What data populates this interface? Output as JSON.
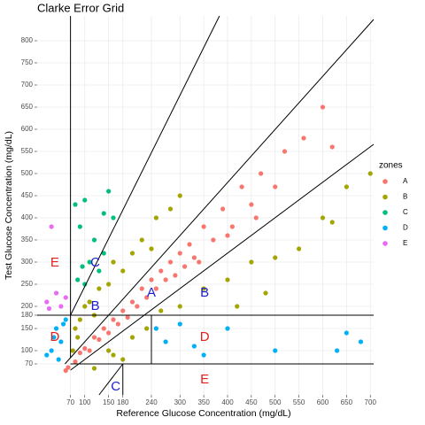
{
  "chart_data": {
    "type": "scatter",
    "title": "Clarke Error Grid",
    "x_label": "Reference Glucose Concentration (mg/dL)",
    "y_label": "Test Glucose Concentration (mg/dL)",
    "legend_title": "zones",
    "legend_position": "right",
    "grid": true,
    "xlim": [
      0,
      707
    ],
    "ylim": [
      0,
      856
    ],
    "xticks": [
      70,
      100,
      150,
      180,
      240,
      300,
      350,
      400,
      450,
      500,
      550,
      600,
      650,
      700
    ],
    "yticks": [
      70,
      100,
      150,
      180,
      200,
      250,
      300,
      350,
      400,
      450,
      500,
      550,
      600,
      650,
      700,
      750,
      800
    ],
    "series": [
      {
        "name": "A",
        "color": "#F8766D",
        "x": [
          60,
          65,
          80,
          90,
          100,
          110,
          120,
          130,
          140,
          150,
          160,
          170,
          180,
          190,
          200,
          210,
          220,
          230,
          240,
          250,
          260,
          270,
          280,
          290,
          300,
          310,
          320,
          330,
          350,
          370,
          390,
          410,
          430,
          450,
          470,
          500,
          520,
          560,
          600,
          620,
          460,
          400,
          340
        ],
        "values": [
          55,
          62,
          75,
          95,
          105,
          100,
          130,
          125,
          150,
          140,
          170,
          160,
          190,
          175,
          210,
          200,
          240,
          220,
          260,
          240,
          280,
          260,
          300,
          270,
          320,
          290,
          340,
          310,
          380,
          350,
          420,
          380,
          470,
          430,
          500,
          470,
          550,
          580,
          650,
          560,
          400,
          360,
          300
        ]
      },
      {
        "name": "B",
        "color": "#A3A500",
        "x": [
          80,
          90,
          100,
          110,
          120,
          130,
          150,
          160,
          180,
          200,
          220,
          240,
          250,
          280,
          300,
          75,
          85,
          150,
          200,
          230,
          260,
          300,
          350,
          400,
          450,
          500,
          550,
          600,
          650,
          700,
          420,
          480,
          180,
          120,
          160,
          620
        ],
        "values": [
          150,
          170,
          200,
          210,
          180,
          240,
          250,
          300,
          280,
          320,
          350,
          330,
          400,
          420,
          450,
          100,
          130,
          100,
          130,
          150,
          190,
          200,
          240,
          260,
          300,
          310,
          330,
          400,
          470,
          500,
          200,
          230,
          80,
          60,
          90,
          390
        ]
      },
      {
        "name": "C",
        "color": "#00BF7D",
        "x": [
          80,
          90,
          100,
          110,
          120,
          130,
          140,
          150,
          160,
          100,
          95,
          140,
          85
        ],
        "values": [
          430,
          380,
          440,
          300,
          350,
          280,
          320,
          460,
          400,
          250,
          290,
          410,
          260
        ]
      },
      {
        "name": "D",
        "color": "#00B0F6",
        "x": [
          30,
          40,
          50,
          60,
          20,
          45,
          35,
          55,
          250,
          270,
          300,
          330,
          350,
          400,
          500,
          630,
          650,
          680
        ],
        "values": [
          100,
          150,
          120,
          170,
          90,
          80,
          130,
          160,
          150,
          120,
          160,
          110,
          90,
          150,
          100,
          100,
          140,
          120
        ]
      },
      {
        "name": "E",
        "color": "#E76BF3",
        "x": [
          30,
          20,
          40,
          50,
          60,
          25
        ],
        "values": [
          380,
          210,
          230,
          200,
          220,
          195
        ]
      }
    ],
    "boundaries": [
      [
        [
          70,
          84
        ],
        [
          70,
          856
        ]
      ],
      [
        [
          58.33,
          70
        ],
        [
          707,
          848
        ]
      ],
      [
        [
          70,
          56
        ],
        [
          707,
          566
        ]
      ],
      [
        [
          70,
          180
        ],
        [
          383,
          856
        ]
      ],
      [
        [
          0,
          180
        ],
        [
          707,
          180
        ]
      ],
      [
        [
          70,
          70
        ],
        [
          707,
          70
        ]
      ],
      [
        [
          240,
          70
        ],
        [
          240,
          180
        ]
      ],
      [
        [
          180,
          0
        ],
        [
          180,
          70
        ]
      ],
      [
        [
          130,
          0
        ],
        [
          180,
          70
        ]
      ]
    ],
    "zone_labels": [
      {
        "text": "A",
        "x": 240,
        "y": 230,
        "color": "#1c1cd0"
      },
      {
        "text": "B",
        "x": 352,
        "y": 230,
        "color": "#1c1cd0"
      },
      {
        "text": "B",
        "x": 122,
        "y": 200,
        "color": "#1c1cd0"
      },
      {
        "text": "C",
        "x": 122,
        "y": 298,
        "color": "#1c1cd0"
      },
      {
        "text": "C",
        "x": 165,
        "y": 18,
        "color": "#1c1cd0"
      },
      {
        "text": "E",
        "x": 37,
        "y": 298,
        "color": "#e0201c"
      },
      {
        "text": "D",
        "x": 37,
        "y": 130,
        "color": "#e0201c"
      },
      {
        "text": "D",
        "x": 352,
        "y": 130,
        "color": "#e0201c"
      },
      {
        "text": "E",
        "x": 352,
        "y": 34,
        "color": "#e0201c"
      }
    ]
  }
}
